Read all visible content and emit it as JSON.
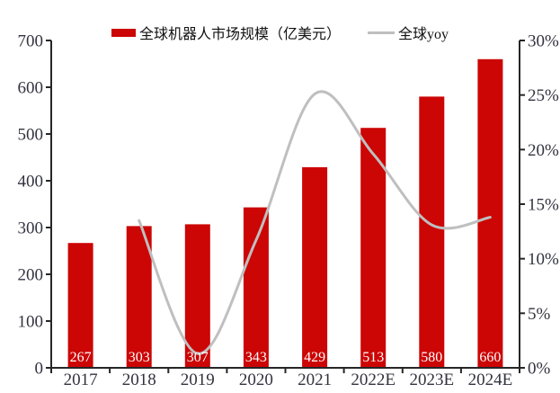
{
  "legend": {
    "bar_label": "全球机器人市场规模（亿美元）",
    "line_label": "全球yoy"
  },
  "colors": {
    "bar": "#CC0505",
    "line": "#BFBFBF",
    "axis": "#262626",
    "tick_label": "#333340",
    "value_label": "#FFFFFF",
    "background": "#FFFFFF"
  },
  "chart_data": {
    "type": "bar",
    "title": "",
    "categories": [
      "2017",
      "2018",
      "2019",
      "2020",
      "2021",
      "2022E",
      "2023E",
      "2024E"
    ],
    "series": [
      {
        "name": "全球机器人市场规模（亿美元）",
        "type": "bar",
        "axis": "left",
        "color": "#CC0505",
        "values": [
          267,
          303,
          307,
          343,
          429,
          513,
          580,
          660
        ],
        "data_labels": [
          "267",
          "303",
          "307",
          "343",
          "429",
          "513",
          "580",
          "660"
        ]
      },
      {
        "name": "全球yoy",
        "type": "line",
        "axis": "right",
        "color": "#BFBFBF",
        "smooth": true,
        "values": [
          null,
          13.5,
          1.3,
          11.7,
          25.1,
          19.6,
          13.1,
          13.8
        ]
      }
    ],
    "left_axis": {
      "min": 0,
      "max": 700,
      "step": 100,
      "tick_labels": [
        "0",
        "100",
        "200",
        "300",
        "400",
        "500",
        "600",
        "700"
      ]
    },
    "right_axis": {
      "min": 0,
      "max": 30,
      "step": 5,
      "tick_labels": [
        "0%",
        "5%",
        "10%",
        "15%",
        "20%",
        "25%",
        "30%"
      ]
    },
    "grid": false,
    "legend_position": "top"
  }
}
